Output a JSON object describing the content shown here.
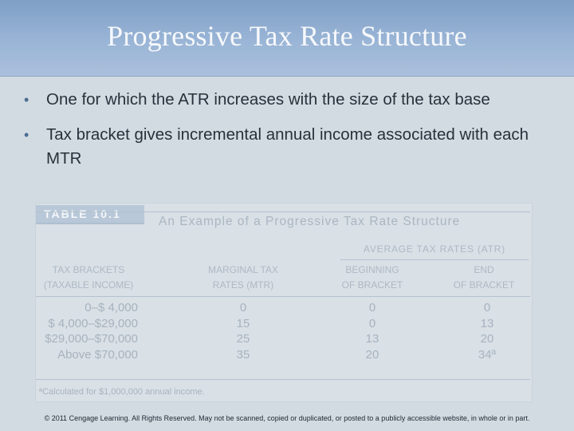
{
  "slide": {
    "title": "Progressive Tax Rate Structure",
    "bullets": [
      "One for which the ATR increases with the size of the tax base",
      "Tax bracket gives incremental annual income associated with each MTR"
    ],
    "footer": "© 2011 Cengage Learning. All Rights Reserved. May not be scanned, copied or duplicated, or posted to a publicly accessible website, in whole or in part."
  },
  "table": {
    "tag": "TABLE 10.1",
    "caption": "An Example of a Progressive Tax Rate Structure",
    "group_header": "AVERAGE TAX RATES (ATR)",
    "col_headers": [
      [
        "TAX BRACKETS",
        "(TAXABLE INCOME)"
      ],
      [
        "MARGINAL TAX",
        "RATES (MTR)"
      ],
      [
        "BEGINNING",
        "OF BRACKET"
      ],
      [
        "END",
        "OF BRACKET"
      ]
    ],
    "rows": [
      [
        "0–$ 4,000",
        "0",
        "0",
        "0"
      ],
      [
        "$ 4,000–$29,000",
        "15",
        "0",
        "13"
      ],
      [
        "$29,000–$70,000",
        "25",
        "13",
        "20"
      ],
      [
        "Above $70,000",
        "35",
        "20",
        "34ª"
      ]
    ],
    "footnote": "ªCalculated for $1,000,000 annual income."
  }
}
